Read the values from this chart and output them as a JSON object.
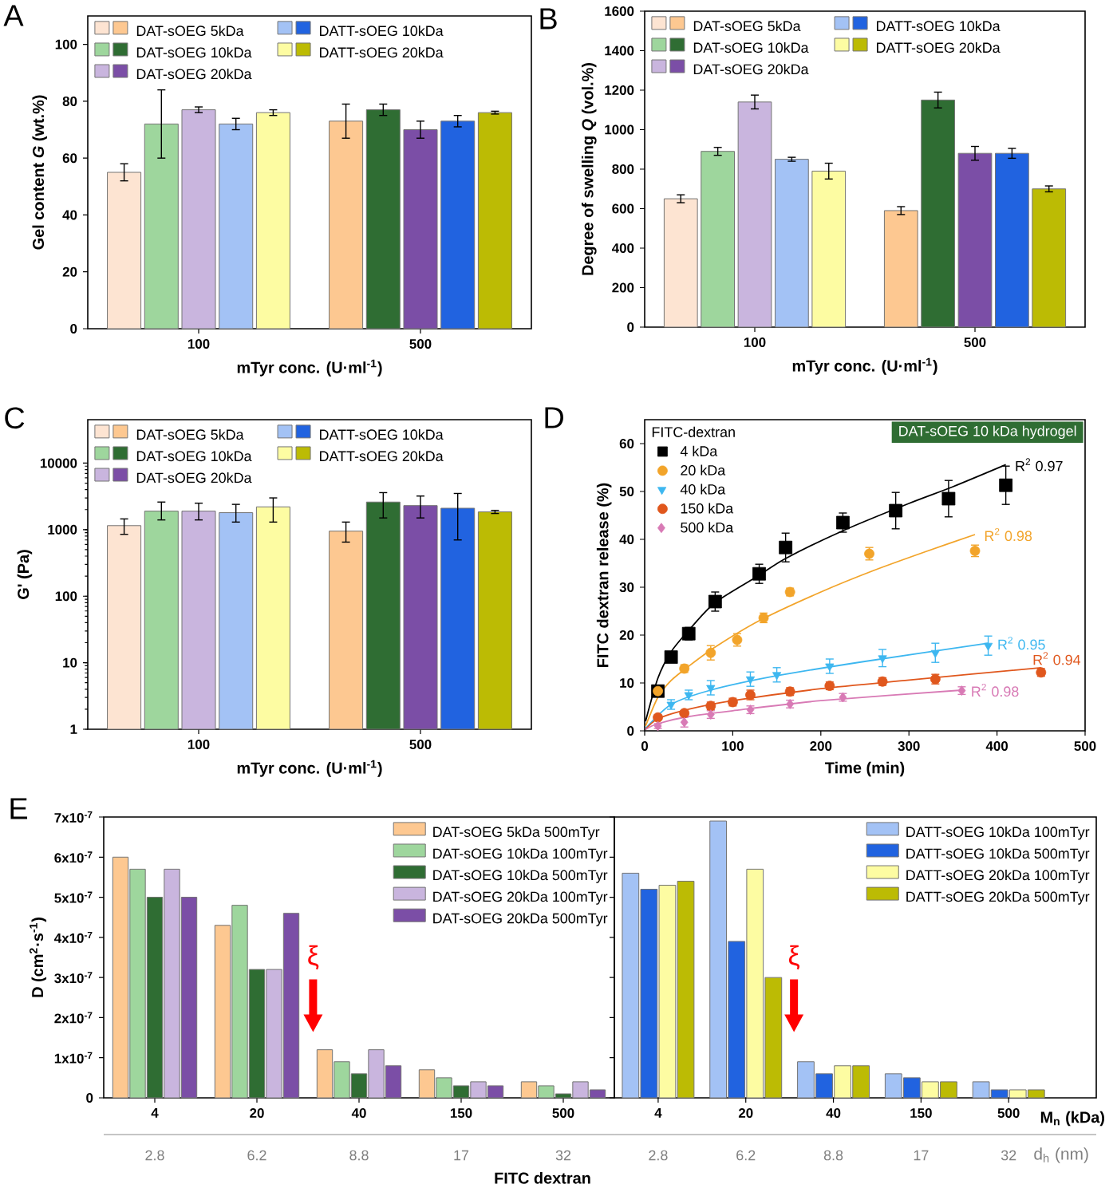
{
  "chart_data": [
    {
      "type": "bar",
      "title": "A",
      "xlabel": "mTyr conc. (U·ml$^{-1}$)",
      "ylabel": "Gel content *G* (wt.%)",
      "categories": [
        "100",
        "500"
      ],
      "ylim": [
        0,
        110
      ],
      "yticks": [
        0,
        20,
        40,
        60,
        80,
        100
      ],
      "legend": "top left",
      "series": [
        {
          "name": "DAT-sOEG 5kDa",
          "colors": [
            "#fde4d2",
            "#fdc891"
          ],
          "values": [
            55,
            73
          ],
          "errors": [
            3,
            6
          ]
        },
        {
          "name": "DAT-sOEG 10kDa",
          "colors": [
            "#9ed69d",
            "#2f6d33"
          ],
          "values": [
            72,
            77
          ],
          "errors": [
            12,
            2
          ]
        },
        {
          "name": "DAT-sOEG 20kDa",
          "colors": [
            "#c9b5de",
            "#7b4ea6"
          ],
          "values": [
            77,
            70
          ],
          "errors": [
            1,
            3
          ]
        },
        {
          "name": "DATT-sOEG 10kDa",
          "colors": [
            "#a3c2f5",
            "#2163e0"
          ],
          "values": [
            72,
            73
          ],
          "errors": [
            2,
            2
          ]
        },
        {
          "name": "DATT-sOEG 20kDa",
          "colors": [
            "#fdfca2",
            "#bcbb04"
          ],
          "values": [
            76,
            76
          ],
          "errors": [
            1,
            0.5
          ]
        }
      ]
    },
    {
      "type": "bar",
      "title": "B",
      "xlabel": "mTyr conc. (U·ml$^{-1}$)",
      "ylabel": "Degree of swelling *Q* (vol.%)",
      "categories": [
        "100",
        "500"
      ],
      "ylim": [
        0,
        1600
      ],
      "yticks": [
        0,
        200,
        400,
        600,
        800,
        1000,
        1200,
        1400,
        1600
      ],
      "legend": "top left",
      "series": [
        {
          "name": "DAT-sOEG 5kDa",
          "colors": [
            "#fde4d2",
            "#fdc891"
          ],
          "values": [
            650,
            590
          ],
          "errors": [
            20,
            20
          ]
        },
        {
          "name": "DAT-sOEG 10kDa",
          "colors": [
            "#9ed69d",
            "#2f6d33"
          ],
          "values": [
            890,
            1150
          ],
          "errors": [
            20,
            40
          ]
        },
        {
          "name": "DAT-sOEG 20kDa",
          "colors": [
            "#c9b5de",
            "#7b4ea6"
          ],
          "values": [
            1140,
            880
          ],
          "errors": [
            35,
            35
          ]
        },
        {
          "name": "DATT-sOEG 10kDa",
          "colors": [
            "#a3c2f5",
            "#2163e0"
          ],
          "values": [
            850,
            880
          ],
          "errors": [
            10,
            25
          ]
        },
        {
          "name": "DATT-sOEG 20kDa",
          "colors": [
            "#fdfca2",
            "#bcbb04"
          ],
          "values": [
            790,
            700
          ],
          "errors": [
            40,
            15
          ]
        }
      ]
    },
    {
      "type": "bar",
      "title": "C",
      "xlabel": "mTyr conc. (U·ml$^{-1}$)",
      "ylabel": "G' (Pa)",
      "categories": [
        "100",
        "500"
      ],
      "log": true,
      "ylim": [
        1,
        45000
      ],
      "yticks": [
        1,
        10,
        100,
        1000,
        10000
      ],
      "legend": "top left",
      "series": [
        {
          "name": "DAT-sOEG 5kDa",
          "colors": [
            "#fde4d2",
            "#fdc891"
          ],
          "values": [
            1150,
            950
          ],
          "errors": [
            [
              850,
              1450
            ],
            [
              650,
              1300
            ]
          ]
        },
        {
          "name": "DAT-sOEG 10kDa",
          "colors": [
            "#9ed69d",
            "#2f6d33"
          ],
          "values": [
            1900,
            2600
          ],
          "errors": [
            [
              1400,
              2600
            ],
            [
              1500,
              3600
            ]
          ]
        },
        {
          "name": "DAT-sOEG 20kDa",
          "colors": [
            "#c9b5de",
            "#7b4ea6"
          ],
          "values": [
            1900,
            2300
          ],
          "errors": [
            [
              1400,
              2500
            ],
            [
              1500,
              3200
            ]
          ]
        },
        {
          "name": "DATT-sOEG 10kDa",
          "colors": [
            "#a3c2f5",
            "#2163e0"
          ],
          "values": [
            1800,
            2100
          ],
          "errors": [
            [
              1300,
              2400
            ],
            [
              700,
              3500
            ]
          ]
        },
        {
          "name": "DATT-sOEG 20kDa",
          "colors": [
            "#fdfca2",
            "#bcbb04"
          ],
          "values": [
            2200,
            1850
          ],
          "errors": [
            [
              1300,
              3000
            ],
            [
              1750,
              1950
            ]
          ]
        }
      ]
    },
    {
      "type": "scatter",
      "title": "D",
      "subtitle": "DAT-sOEG 10 kDa hydrogel",
      "xlabel": "Time (min)",
      "ylabel": "FITC dextran release (%)",
      "legend_title": "FITC-dextran",
      "legend": "top left",
      "xlim": [
        0,
        500
      ],
      "xticks": [
        0,
        100,
        200,
        300,
        400,
        500
      ],
      "ylim": [
        0,
        65
      ],
      "yticks": [
        0,
        10,
        20,
        30,
        40,
        50,
        60
      ],
      "series": [
        {
          "name": "4 kDa",
          "color": "#000000",
          "marker": "square",
          "x": [
            15,
            30,
            50,
            80,
            130,
            160,
            225,
            285,
            345,
            410
          ],
          "values": [
            8.3,
            15.4,
            20.3,
            27,
            32.8,
            38.3,
            43.5,
            46,
            48.5,
            51.3
          ],
          "errors": [
            0.8,
            1,
            1.3,
            2,
            2,
            3,
            2,
            3.8,
            3.8,
            4
          ]
        },
        {
          "name": "20 kDa",
          "color": "#f2a42a",
          "marker": "circle",
          "x": [
            15,
            45,
            75,
            105,
            135,
            165,
            255,
            375
          ],
          "values": [
            8.3,
            13,
            16.3,
            19,
            23.6,
            29,
            37,
            37.6
          ],
          "errors": [
            0.5,
            0.8,
            1.5,
            1.3,
            1,
            0.8,
            1.3,
            1.2
          ]
        },
        {
          "name": "40 kDa",
          "color": "#3db7f0",
          "marker": "triangle",
          "x": [
            30,
            50,
            75,
            120,
            150,
            210,
            270,
            330,
            390
          ],
          "values": [
            5.5,
            7.5,
            9,
            10.8,
            11.7,
            13.5,
            15.2,
            16.3,
            17.8
          ],
          "errors": [
            1,
            1,
            1.5,
            1.5,
            1.5,
            1.5,
            1.8,
            2,
            2
          ]
        },
        {
          "name": "150 kDa",
          "color": "#e0571d",
          "marker": "circle",
          "x": [
            15,
            45,
            75,
            100,
            120,
            165,
            210,
            270,
            330,
            450
          ],
          "values": [
            2.8,
            3.7,
            5.2,
            6,
            7.5,
            8.2,
            9.4,
            10.3,
            10.8,
            12.2
          ],
          "errors": [
            0.5,
            0.5,
            0.8,
            0.8,
            1,
            0.8,
            0.8,
            0.8,
            1,
            0.8
          ]
        },
        {
          "name": "500 kDa",
          "color": "#d87ab5",
          "marker": "diamond",
          "x": [
            15,
            45,
            75,
            120,
            165,
            225,
            360
          ],
          "values": [
            1,
            1.8,
            3.4,
            4.4,
            5.6,
            7,
            8.4
          ],
          "errors": [
            0.5,
            1,
            0.8,
            0.8,
            0.8,
            0.8,
            0.8
          ]
        },
        {
          "type": "line",
          "name": "R$^{2}$ 0.97",
          "color": "#000000",
          "x": [
            1,
            15,
            30,
            50,
            80,
            130,
            160,
            225,
            300,
            350,
            410
          ],
          "values": [
            2,
            11,
            16.5,
            21,
            26.8,
            32.5,
            36,
            41.8,
            47.5,
            51,
            55.6
          ]
        },
        {
          "type": "line",
          "name": "R$^{2}$ 0.98",
          "color": "#f2a42a",
          "x": [
            1,
            15,
            30,
            50,
            80,
            130,
            200,
            260,
            320,
            375
          ],
          "values": [
            1,
            7,
            10.5,
            13.5,
            17.5,
            23,
            29,
            33.5,
            37.5,
            41
          ]
        },
        {
          "type": "line",
          "name": "R$^{2}$ 0.95",
          "color": "#3db7f0",
          "x": [
            1,
            30,
            75,
            150,
            250,
            390
          ],
          "values": [
            0.5,
            5.5,
            8.5,
            11.5,
            14.5,
            18.3
          ]
        },
        {
          "type": "line",
          "name": "R$^{2}$ 0.94",
          "color": "#e0571d",
          "x": [
            1,
            15,
            50,
            100,
            200,
            300,
            450
          ],
          "values": [
            0.3,
            2.5,
            4.5,
            6.3,
            8.8,
            10.6,
            13.2
          ]
        },
        {
          "type": "line",
          "name": "R$^{2}$ 0.98",
          "color": "#d87ab5",
          "x": [
            1,
            15,
            50,
            100,
            200,
            360
          ],
          "values": [
            0.3,
            1.5,
            3,
            4.2,
            6.3,
            8.5
          ]
        }
      ]
    },
    {
      "type": "bar",
      "title": "E",
      "xlabel": "FITC dextran",
      "ylabel": "D (cm$^{2}$·s$^{-1}$)",
      "categories": [
        "4",
        "20",
        "40",
        "150",
        "500"
      ],
      "ylim": [
        0,
        7e-07
      ],
      "yticks": [
        0,
        {
          "value": 1e-07,
          "label": "1x10$^{-7}$"
        },
        {
          "value": 2e-07,
          "label": "2x10$^{-7}$"
        },
        {
          "value": 3e-07,
          "label": "3x10$^{-7}$"
        },
        {
          "value": 4e-07,
          "label": "4x10$^{-7}$"
        },
        {
          "value": 5e-07,
          "label": "5x10$^{-7}$"
        },
        {
          "value": 6e-07,
          "label": "6x10$^{-7}$"
        },
        {
          "value": 7e-07,
          "label": "7x10$^{-7}$"
        }
      ],
      "legend": "top right",
      "annotations": [
        "ξ",
        "2.8",
        "6.2",
        "8.8",
        "17",
        "32"
      ],
      "series": [
        {
          "name": "DAT-sOEG 5kDa 500mTyr",
          "color": "#fdc891",
          "values": [
            6e-07,
            4.3e-07,
            1.2e-07,
            7e-08,
            4e-08
          ]
        },
        {
          "name": "DAT-sOEG 10kDa 100mTyr",
          "color": "#9ed69d",
          "values": [
            5.7e-07,
            4.8e-07,
            9e-08,
            5e-08,
            3e-08
          ]
        },
        {
          "name": "DAT-sOEG 10kDa 500mTyr",
          "color": "#2f6d33",
          "values": [
            5e-07,
            3.2e-07,
            6e-08,
            3e-08,
            1e-08
          ]
        },
        {
          "name": "DAT-sOEG 20kDa 100mTyr",
          "color": "#c9b5de",
          "values": [
            5.7e-07,
            3.2e-07,
            1.2e-07,
            4e-08,
            4e-08
          ]
        },
        {
          "name": "DAT-sOEG 20kDa 500mTyr",
          "color": "#7b4ea6",
          "values": [
            5e-07,
            4.6e-07,
            8e-08,
            3e-08,
            2e-08
          ]
        }
      ]
    },
    {
      "type": "bar",
      "xlabel": "M$_{n}$ (kDa)",
      "x2label": "d$_{h}$ (nm)",
      "categories": [
        "4",
        "20",
        "40",
        "150",
        "500"
      ],
      "ylim": [
        0,
        7e-07
      ],
      "yticks": [
        0,
        1e-07,
        2e-07,
        3e-07,
        4e-07,
        5e-07,
        6e-07,
        7e-07
      ],
      "tick_labels": "x",
      "legend": "top right",
      "annotations": [
        "ξ",
        "2.8",
        "6.2",
        "8.8",
        "17",
        "32"
      ],
      "series": [
        {
          "name": "DATT-sOEG 10kDa 100mTyr",
          "color": "#a3c2f5",
          "values": [
            5.6e-07,
            6.9e-07,
            9e-08,
            6e-08,
            4e-08
          ]
        },
        {
          "name": "DATT-sOEG 10kDa 500mTyr",
          "color": "#2163e0",
          "values": [
            5.2e-07,
            3.9e-07,
            6e-08,
            5e-08,
            2e-08
          ]
        },
        {
          "name": "DATT-sOEG 20kDa 100mTyr",
          "color": "#fdfca2",
          "values": [
            5.3e-07,
            5.7e-07,
            8e-08,
            4e-08,
            2e-08
          ]
        },
        {
          "name": "DATT-sOEG 20kDa 500mTyr",
          "color": "#bcbb04",
          "values": [
            5.4e-07,
            3e-07,
            8e-08,
            4e-08,
            2e-08
          ]
        }
      ]
    }
  ]
}
